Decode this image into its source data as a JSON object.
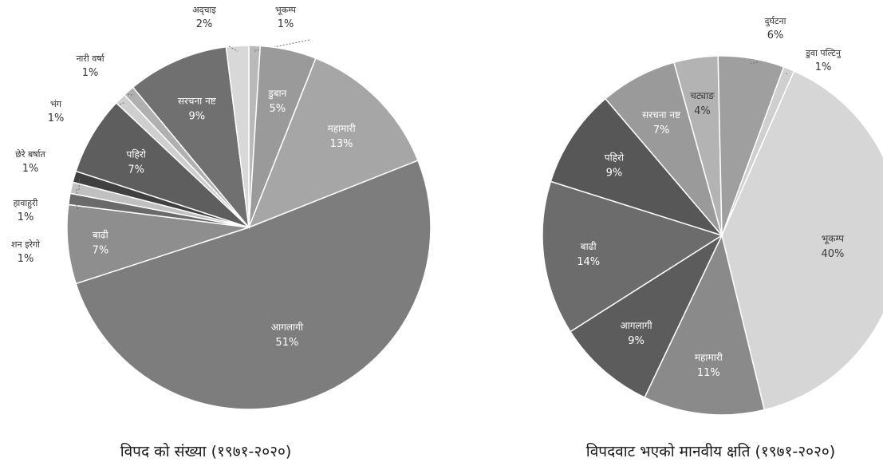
{
  "chart_data": [
    {
      "type": "pie",
      "title": "विपद को संख्या (१९७१-२०२०)",
      "slices": [
        {
          "label": "भूकम्प",
          "value": 1,
          "pct_label": "1%",
          "color": "#b9b9b9",
          "label_pos": "outside"
        },
        {
          "label": "डुबान",
          "value": 5,
          "pct_label": "5%",
          "color": "#9a9a9a",
          "label_pos": "inside"
        },
        {
          "label": "महामारी",
          "value": 13,
          "pct_label": "13%",
          "color": "#a6a6a6",
          "label_pos": "inside"
        },
        {
          "label": "आगलागी",
          "value": 51,
          "pct_label": "51%",
          "color": "#7d7d7d",
          "label_pos": "inside"
        },
        {
          "label": "बाढी",
          "value": 7,
          "pct_label": "7%",
          "color": "#8e8e8e",
          "label_pos": "inside"
        },
        {
          "label": "शन इरेगो",
          "value": 1,
          "pct_label": "1%",
          "color": "#6a6a6a",
          "label_pos": "outside"
        },
        {
          "label": "हावाहुरी",
          "value": 1,
          "pct_label": "1%",
          "color": "#c0c0c0",
          "label_pos": "outside"
        },
        {
          "label": "छेरे बर्षात",
          "value": 1,
          "pct_label": "1%",
          "color": "#404040",
          "label_pos": "outside"
        },
        {
          "label": "पहिरो",
          "value": 7,
          "pct_label": "7%",
          "color": "#5e5e5e",
          "label_pos": "inside"
        },
        {
          "label": "भंग",
          "value": 1,
          "pct_label": "1%",
          "color": "#cfcfcf",
          "label_pos": "outside"
        },
        {
          "label": "नारी वर्षा",
          "value": 1,
          "pct_label": "1%",
          "color": "#b0b0b0",
          "label_pos": "outside"
        },
        {
          "label": "सरचना नष्ट",
          "value": 9,
          "pct_label": "9%",
          "color": "#707070",
          "label_pos": "inside"
        },
        {
          "label": "अद्चाइ",
          "value": 2,
          "pct_label": "2%",
          "color": "#d8d8d8",
          "label_pos": "outside"
        }
      ]
    },
    {
      "type": "pie",
      "title": "विपदवाट भएको मानवीय क्षति (१९७१-२०२०)",
      "slices": [
        {
          "label": "डुवा पल्टिनु",
          "value": 1,
          "pct_label": "1%",
          "color": "#cfcfcf",
          "label_pos": "outside"
        },
        {
          "label": "भूकम्प",
          "value": 40,
          "pct_label": "40%",
          "color": "#d6d6d6",
          "label_pos": "inside"
        },
        {
          "label": "महामारी",
          "value": 11,
          "pct_label": "11%",
          "color": "#8a8a8a",
          "label_pos": "inside"
        },
        {
          "label": "आगलागी",
          "value": 9,
          "pct_label": "9%",
          "color": "#5c5c5c",
          "label_pos": "inside"
        },
        {
          "label": "बाढी",
          "value": 14,
          "pct_label": "14%",
          "color": "#6c6c6c",
          "label_pos": "inside"
        },
        {
          "label": "पहिरो",
          "value": 9,
          "pct_label": "9%",
          "color": "#575757",
          "label_pos": "inside"
        },
        {
          "label": "सरचना नष्ट",
          "value": 7,
          "pct_label": "7%",
          "color": "#9a9a9a",
          "label_pos": "inside"
        },
        {
          "label": "चट्याङ",
          "value": 4,
          "pct_label": "4%",
          "color": "#b3b3b3",
          "label_pos": "inside"
        },
        {
          "label": "दुर्घटना",
          "value": 6,
          "pct_label": "6%",
          "color": "#9f9f9f",
          "label_pos": "outside"
        }
      ]
    }
  ]
}
